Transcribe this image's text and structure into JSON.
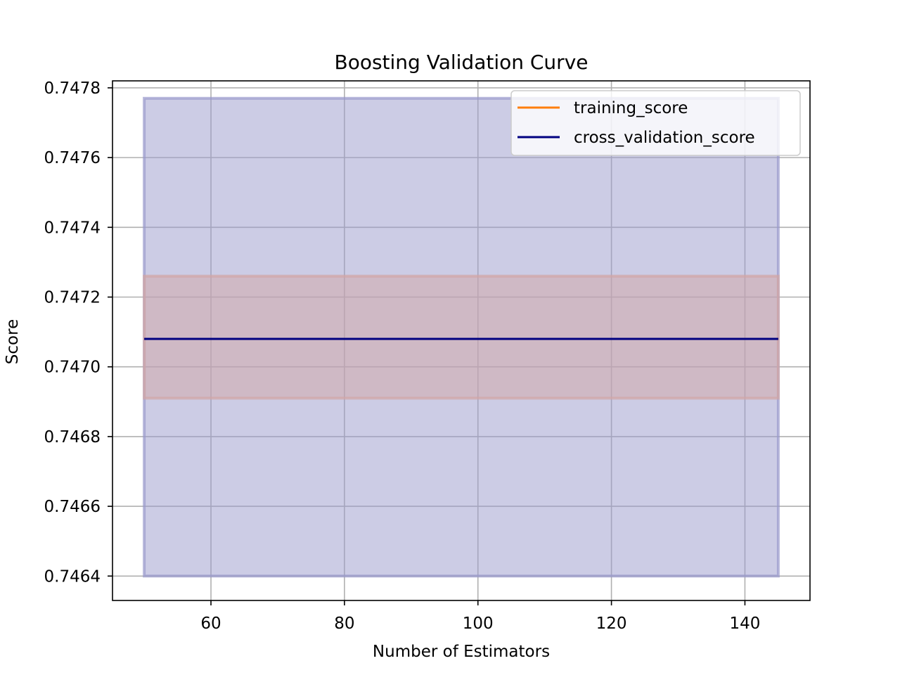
{
  "chart_data": {
    "type": "line",
    "title": "Boosting Validation Curve",
    "xlabel": "Number of Estimators",
    "ylabel": "Score",
    "xlim": [
      45.25,
      149.75
    ],
    "ylim": [
      0.74633,
      0.74782
    ],
    "xticks": [
      60,
      80,
      100,
      120,
      140
    ],
    "xtick_labels": [
      "60",
      "80",
      "100",
      "120",
      "140"
    ],
    "yticks": [
      0.7464,
      0.7466,
      0.7468,
      0.747,
      0.7472,
      0.7474,
      0.7476,
      0.7478
    ],
    "ytick_labels": [
      "0.7464",
      "0.7466",
      "0.7468",
      "0.7470",
      "0.7472",
      "0.7474",
      "0.7476",
      "0.7478"
    ],
    "grid": true,
    "legend_position": "top-right",
    "series": [
      {
        "name": "training_score",
        "color": "#ff7f0e",
        "band_color": "#d1a5a5",
        "x": [
          50,
          145
        ],
        "y": [
          0.74708,
          0.74708
        ],
        "band_lower": [
          0.74691,
          0.74691
        ],
        "band_upper": [
          0.74726,
          0.74726
        ]
      },
      {
        "name": "cross_validation_score",
        "color": "#000080",
        "band_color": "#9999cc",
        "x": [
          50,
          145
        ],
        "y": [
          0.74708,
          0.74708
        ],
        "band_lower": [
          0.7464,
          0.7464
        ],
        "band_upper": [
          0.74777,
          0.74777
        ]
      }
    ]
  }
}
